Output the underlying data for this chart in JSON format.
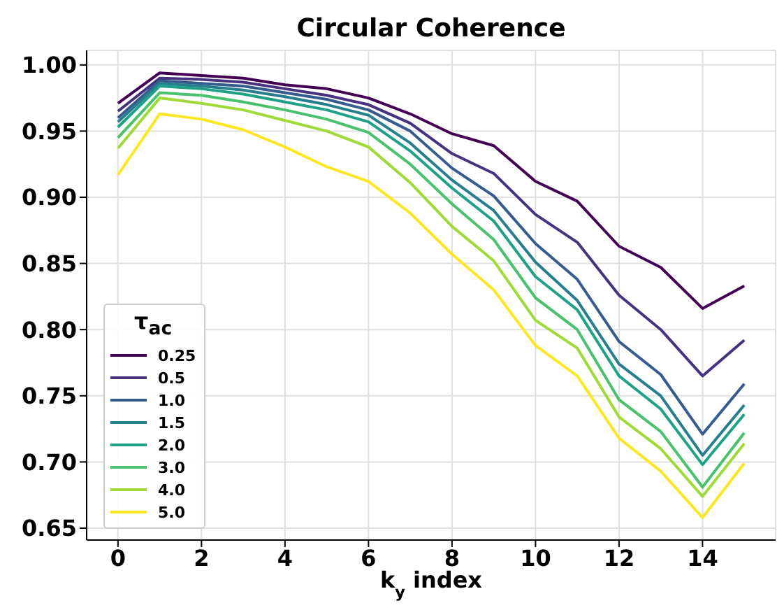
{
  "chart_data": {
    "type": "line",
    "title": "Circular Coherence",
    "xlabel": "k$_{y}$ index",
    "legend_title": "τ$_{ac}$",
    "x": [
      0,
      1,
      2,
      3,
      4,
      5,
      6,
      7,
      8,
      9,
      10,
      11,
      12,
      13,
      14,
      15
    ],
    "series": [
      {
        "name": "0.25",
        "color": "#440154",
        "values": [
          0.971,
          0.994,
          0.992,
          0.99,
          0.985,
          0.982,
          0.975,
          0.963,
          0.948,
          0.939,
          0.912,
          0.897,
          0.863,
          0.847,
          0.816,
          0.833
        ]
      },
      {
        "name": "0.5",
        "color": "#46327e",
        "values": [
          0.965,
          0.99,
          0.989,
          0.987,
          0.982,
          0.977,
          0.97,
          0.956,
          0.933,
          0.918,
          0.887,
          0.866,
          0.826,
          0.8,
          0.765,
          0.792
        ]
      },
      {
        "name": "1.0",
        "color": "#365c8d",
        "values": [
          0.96,
          0.988,
          0.986,
          0.984,
          0.979,
          0.974,
          0.966,
          0.95,
          0.922,
          0.901,
          0.865,
          0.838,
          0.791,
          0.766,
          0.721,
          0.759
        ]
      },
      {
        "name": "1.5",
        "color": "#277f8e",
        "values": [
          0.957,
          0.986,
          0.984,
          0.981,
          0.976,
          0.97,
          0.962,
          0.941,
          0.913,
          0.89,
          0.851,
          0.822,
          0.774,
          0.75,
          0.705,
          0.743
        ]
      },
      {
        "name": "2.0",
        "color": "#1fa187",
        "values": [
          0.953,
          0.984,
          0.982,
          0.978,
          0.972,
          0.966,
          0.957,
          0.935,
          0.907,
          0.882,
          0.84,
          0.815,
          0.765,
          0.74,
          0.698,
          0.736
        ]
      },
      {
        "name": "3.0",
        "color": "#4ac16d",
        "values": [
          0.945,
          0.979,
          0.977,
          0.972,
          0.966,
          0.959,
          0.949,
          0.925,
          0.895,
          0.868,
          0.824,
          0.8,
          0.747,
          0.723,
          0.681,
          0.722
        ]
      },
      {
        "name": "4.0",
        "color": "#a0da39",
        "values": [
          0.937,
          0.975,
          0.971,
          0.966,
          0.958,
          0.95,
          0.938,
          0.911,
          0.878,
          0.852,
          0.807,
          0.786,
          0.734,
          0.71,
          0.674,
          0.714
        ]
      },
      {
        "name": "5.0",
        "color": "#fde725",
        "values": [
          0.917,
          0.963,
          0.959,
          0.951,
          0.938,
          0.923,
          0.912,
          0.888,
          0.857,
          0.83,
          0.788,
          0.765,
          0.718,
          0.693,
          0.658,
          0.699
        ]
      }
    ],
    "xlim": [
      -0.75,
      15.75
    ],
    "xticks": [
      0,
      2,
      4,
      6,
      8,
      10,
      12,
      14
    ],
    "ylim": [
      0.641,
      1.011
    ],
    "yticks": [
      0.65,
      {
        "value": 0.7,
        "label": "0.70"
      },
      0.75,
      {
        "value": 0.8,
        "label": "0.80"
      },
      0.85,
      {
        "value": 0.9,
        "label": "0.90"
      },
      0.95,
      {
        "value": 1.0,
        "label": "1.00"
      }
    ],
    "grid": true,
    "legend": "bottom left",
    "marker": "none",
    "line_style": "solid"
  }
}
